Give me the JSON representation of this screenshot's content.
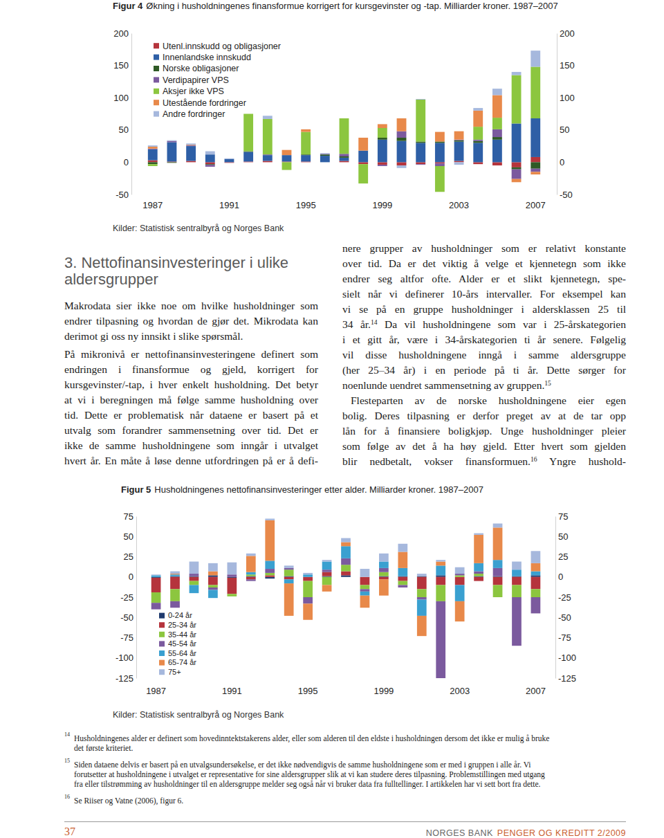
{
  "chart_data": [
    {
      "type": "bar",
      "stacked": true,
      "legend": "upper left",
      "label": "Figur 4",
      "title": "Økning i husholdningenes finansformue korrigert for kursgevinster og -tap. Milliarder kroner. 1987–2007",
      "source": "Kilder: Statistisk sentralbyrå og Norges Bank",
      "categories": [
        "1987",
        null,
        null,
        null,
        "1991",
        null,
        null,
        null,
        "1995",
        null,
        null,
        null,
        "1999",
        null,
        null,
        null,
        "2003",
        null,
        null,
        null,
        "2007"
      ],
      "ylim": [
        -50,
        200
      ],
      "yticks": [
        -50,
        0,
        50,
        100,
        150,
        200
      ],
      "series": [
        {
          "name": "Utenl.innskudd og obligasjoner",
          "color": "#b5343c",
          "values": [
            3,
            1,
            2,
            -3,
            -1,
            1,
            2,
            1,
            1,
            0,
            2,
            -3,
            -4,
            -5,
            -3,
            -2,
            2,
            -3,
            -5,
            -8,
            8
          ]
        },
        {
          "name": "Innenlandske innskudd",
          "color": "#2e5fa6",
          "values": [
            17,
            30,
            23,
            12,
            5,
            15,
            9,
            10,
            10,
            10,
            5,
            18,
            35,
            33,
            30,
            30,
            30,
            30,
            35,
            60,
            60
          ]
        },
        {
          "name": "Norske obligasjoner",
          "color": "#2f5a26",
          "values": [
            -3,
            -1,
            0,
            -1,
            0,
            1,
            0,
            0,
            1,
            2,
            2,
            0,
            3,
            5,
            2,
            2,
            2,
            3,
            4,
            -3,
            -10
          ]
        },
        {
          "name": "Verdipapirer VPS",
          "color": "#7b5a9e",
          "values": [
            1,
            2,
            1,
            -3,
            0,
            0,
            1,
            0,
            0,
            1,
            4,
            0,
            -2,
            10,
            -1,
            -4,
            1,
            2,
            12,
            -15,
            -5
          ]
        },
        {
          "name": "Aksjer ikke VPS",
          "color": "#8cc63f",
          "values": [
            -3,
            0,
            0,
            0,
            0,
            58,
            55,
            -12,
            35,
            0,
            55,
            -30,
            15,
            0,
            65,
            -40,
            0,
            20,
            18,
            75,
            80
          ]
        },
        {
          "name": "Utestående fordringer",
          "color": "#e8894a",
          "values": [
            3,
            0,
            1,
            0,
            0,
            0,
            0,
            8,
            4,
            0,
            0,
            20,
            6,
            20,
            0,
            15,
            13,
            25,
            35,
            -5,
            -4
          ]
        },
        {
          "name": "Andre fordringer",
          "color": "#a6b8dd",
          "values": [
            2,
            1,
            2,
            5,
            1,
            0,
            5,
            0,
            0,
            1,
            0,
            0,
            0,
            -4,
            1,
            0,
            -4,
            4,
            10,
            5,
            25
          ]
        }
      ]
    },
    {
      "type": "bar",
      "stacked": true,
      "legend": "lower left",
      "label": "Figur 5",
      "title": "Husholdningenes nettofinansinvesteringer etter alder. Milliarder kroner. 1987–2007",
      "source": "Kilder: Statistisk sentralbyrå og Norges Bank",
      "categories": [
        "1987",
        null,
        null,
        null,
        "1991",
        null,
        null,
        null,
        "1995",
        null,
        null,
        null,
        "1999",
        null,
        null,
        null,
        "2003",
        null,
        null,
        null,
        "2007"
      ],
      "ylim": [
        -125,
        75
      ],
      "yticks": [
        -125,
        -100,
        -75,
        -50,
        -25,
        0,
        25,
        50,
        75
      ],
      "series": [
        {
          "name": "0-24 år",
          "color": "#1f3a6e",
          "values": [
            -1,
            1,
            1,
            2,
            -1,
            1,
            -2,
            1,
            0,
            1,
            2,
            0,
            1,
            1,
            1,
            2,
            0,
            1,
            1,
            1,
            2
          ]
        },
        {
          "name": "25-34 år",
          "color": "#b5343c",
          "values": [
            -18,
            -15,
            -5,
            -10,
            -20,
            -3,
            2,
            -3,
            -5,
            5,
            5,
            -10,
            -3,
            -5,
            -15,
            -10,
            -10,
            -5,
            -10,
            -10,
            -15
          ]
        },
        {
          "name": "35-44 år",
          "color": "#8cc63f",
          "values": [
            -13,
            -15,
            -5,
            -3,
            -3,
            2,
            3,
            8,
            -20,
            -10,
            8,
            -5,
            5,
            -5,
            -10,
            -20,
            2,
            3,
            -15,
            -15,
            -10
          ]
        },
        {
          "name": "45-54 år",
          "color": "#7b5a9e",
          "values": [
            -8,
            -8,
            3,
            -3,
            3,
            -2,
            5,
            2,
            -8,
            3,
            8,
            -3,
            5,
            -3,
            -3,
            -95,
            2,
            3,
            10,
            -60,
            -20
          ]
        },
        {
          "name": "55-64 år",
          "color": "#3aa0d0",
          "values": [
            2,
            2,
            -10,
            -10,
            0,
            3,
            10,
            -5,
            3,
            10,
            15,
            -5,
            8,
            10,
            -20,
            12,
            -20,
            10,
            10,
            8,
            5
          ]
        },
        {
          "name": "65-74 år",
          "color": "#e8894a",
          "values": [
            0,
            1,
            0,
            5,
            0,
            20,
            50,
            -40,
            -20,
            -8,
            5,
            -15,
            -20,
            20,
            -25,
            5,
            -25,
            35,
            40,
            0,
            10
          ]
        },
        {
          "name": "75+",
          "color": "#a6b8dd",
          "values": [
            1,
            3,
            15,
            10,
            15,
            3,
            2,
            3,
            2,
            2,
            5,
            10,
            10,
            10,
            3,
            2,
            8,
            2,
            5,
            10,
            15
          ]
        }
      ]
    }
  ],
  "document": {
    "heading": [
      "3. Nettofinansinvesteringer i ulike",
      "aldersgrupper"
    ],
    "left_column": [
      [
        "Makrodata sier ikke noe om hvilke husholdninger som",
        "endrer tilpasning og hvordan de gjør det. Mikrodata kan",
        "derimot gi oss ny innsikt i slike spørsmål."
      ],
      [
        "På mikronivå er nettofinansinvesteringene definert som",
        "endringen i finansformue og gjeld, korrigert for",
        "kursgevinster/-tap, i hver enkelt husholdning. Det betyr",
        "at vi i beregningen må følge samme husholdning over",
        "tid. Dette er problematisk når dataene er basert på et",
        "utvalg som forandrer sammensetning over tid. Det er",
        "ikke de samme husholdningene som inngår i utvalget",
        "hvert år. En måte å løse denne utfordringen på er å defi-"
      ]
    ],
    "right_column": [
      [
        "nere grupper av husholdninger som er relativt konstante",
        "over tid. Da er det viktig å velge et kjennetegn som ikke",
        "endrer seg altfor ofte. Alder er et slikt kjennetegn, spe-",
        "sielt når vi definerer 10-års intervaller. For eksempel kan",
        "vi se på en gruppe husholdninger i aldersklassen 25 til",
        [
          "34 år.",
          {
            "sup": "14"
          },
          " Da vil husholdningene som var i 25-årskategorien"
        ],
        "i et gitt år, være i 34-årskategorien ti år senere. Følgelig",
        "vil disse husholdningene inngå i samme aldersgruppe",
        "(her 25–34 år) i en periode på ti år. Dette sørger for",
        [
          "noenlunde uendret sammensetning av gruppen.",
          {
            "sup": "15"
          }
        ]
      ],
      [
        "Flesteparten av de norske husholdningene eier egen",
        "bolig. Deres tilpasning er derfor preget av at de tar opp",
        "lån for å finansiere boligkjøp. Unge husholdninger pleier",
        "som følge av det å ha høy gjeld. Etter hvert som gjelden",
        [
          "blir nedbetalt, vokser finansformuen.",
          {
            "sup": "16"
          },
          " Yngre hushold-"
        ]
      ]
    ],
    "footnotes": [
      {
        "number": "14",
        "lines": [
          "Husholdningenes alder er definert som hovedinntektstakerens alder, eller som alderen til den eldste i husholdningen dersom det ikke er mulig å bruke",
          "det første kriteriet."
        ]
      },
      {
        "number": "15",
        "lines": [
          "Siden dataene delvis er basert på en utvalgsundersøkelse, er det ikke nødvendigvis de samme husholdningene som er med i gruppen i alle år. Vi",
          "forutsetter at husholdningene i utvalget er representative for sine aldersgrupper slik at vi kan studere deres tilpasning. Problemstillingen med utgang",
          "fra eller tilstrømming av husholdninger til en aldersgruppe melder seg også når vi bruker data fra fulltellinger. I artikkelen har vi sett bort fra dette."
        ]
      },
      {
        "number": "16",
        "lines": [
          "Se Riiser og Vatne (2006), figur 6."
        ]
      }
    ],
    "footer": {
      "page": "37",
      "publisher": "NORGES BANK",
      "publication": "PENGER OG KREDITT 2/2009"
    }
  }
}
